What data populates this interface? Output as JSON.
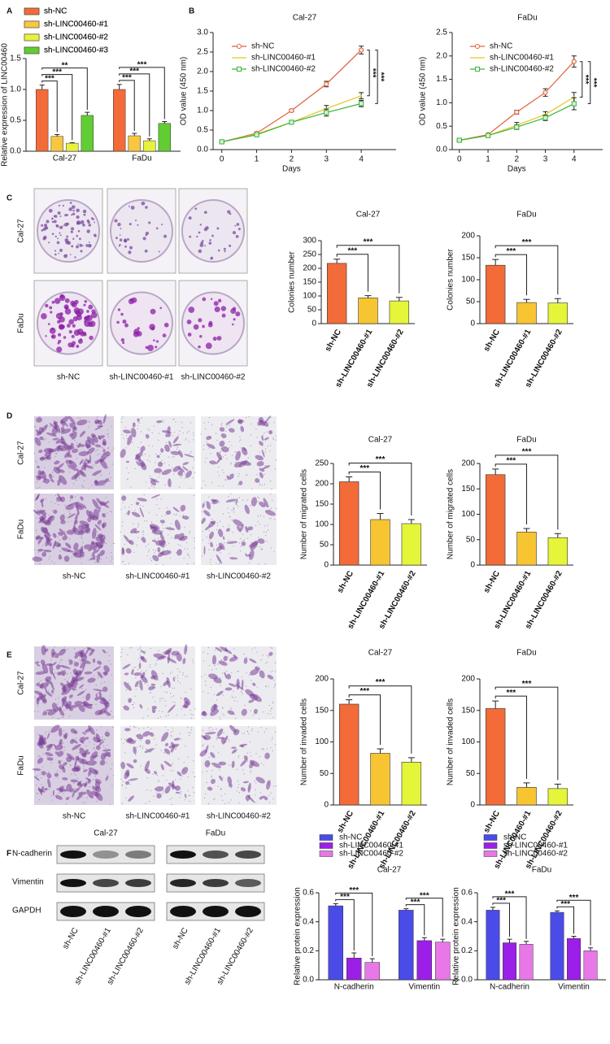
{
  "panel_labels": [
    "A",
    "B",
    "C",
    "D",
    "E",
    "F"
  ],
  "images": {
    "colony": {
      "rows": [
        "Cal-27",
        "FaDu"
      ],
      "columns": [
        "sh-NC",
        "sh-LINC00460-#1",
        "sh-LINC00460-#2"
      ]
    },
    "migration": {
      "rows": [
        "Cal-27",
        "FaDu"
      ],
      "columns": [
        "sh-NC",
        "sh-LINC00460-#1",
        "sh-LINC00460-#2"
      ]
    },
    "invasion": {
      "rows": [
        "Cal-27",
        "FaDu"
      ],
      "columns": [
        "sh-NC",
        "sh-LINC00460-#1",
        "sh-LINC00460-#2"
      ]
    }
  },
  "western_blot": {
    "cell_lines": [
      "Cal-27",
      "FaDu"
    ],
    "proteins": [
      "N-cadherin",
      "Vimentin",
      "GAPDH"
    ],
    "lanes": [
      "sh-NC",
      "sh-LINC00460-#1",
      "sh-LINC00460-#2"
    ]
  },
  "chart_data": [
    {
      "type": "grouped_bar",
      "ylabel": "Relative expression of LINC00460",
      "categories": [
        "Cal-27",
        "FaDu"
      ],
      "series": [
        {
          "name": "sh-NC",
          "color": "#f26b38",
          "values": [
            1.0,
            1.0
          ],
          "errors": [
            0.07,
            0.08
          ]
        },
        {
          "name": "sh-LINC00460-#1",
          "color": "#f8c640",
          "values": [
            0.24,
            0.25
          ],
          "errors": [
            0.03,
            0.04
          ]
        },
        {
          "name": "sh-LINC00460-#2",
          "color": "#e8f23c",
          "values": [
            0.13,
            0.17
          ],
          "errors": [
            0.01,
            0.03
          ]
        },
        {
          "name": "sh-LINC00460-#3",
          "color": "#62cc33",
          "values": [
            0.58,
            0.45
          ],
          "errors": [
            0.05,
            0.03
          ]
        }
      ],
      "ylim": [
        0,
        1.5
      ],
      "yticks": [
        {
          "value": 0,
          "label": "0.0"
        },
        0.5,
        {
          "value": 1,
          "label": "1.0"
        },
        1.5
      ],
      "annotations": [
        [
          "***",
          "***",
          "**"
        ],
        [
          "***",
          "***",
          "***"
        ]
      ]
    },
    {
      "type": "line",
      "title": "Cal-27",
      "xlabel": "Days",
      "ylabel": "OD value (450 nm)",
      "x": [
        0,
        1,
        2,
        3,
        4
      ],
      "series": [
        {
          "name": "sh-NC",
          "color": "#e0603a",
          "marker": "circle",
          "values": [
            0.2,
            0.42,
            1.0,
            1.68,
            2.55
          ],
          "errors": [
            0.02,
            0.03,
            0.03,
            0.07,
            0.1
          ]
        },
        {
          "name": "sh-LINC00460-#1",
          "color": "#e7c51f",
          "marker": "none",
          "values": [
            0.2,
            0.4,
            0.7,
            1.05,
            1.38
          ],
          "errors": [
            0.02,
            0.02,
            0.03,
            0.08,
            0.08
          ]
        },
        {
          "name": "sh-LINC00460-#2",
          "color": "#3cb43c",
          "marker": "square",
          "values": [
            0.2,
            0.38,
            0.7,
            0.95,
            1.18
          ],
          "errors": [
            0.02,
            0.02,
            0.03,
            0.09,
            0.08
          ]
        }
      ],
      "xlim": [
        -0.25,
        5
      ],
      "xticks": [
        0,
        1,
        2,
        3,
        4
      ],
      "ylim": [
        0,
        3
      ],
      "yticks": [
        {
          "value": 0,
          "label": "0.0"
        },
        0.5,
        {
          "value": 1,
          "label": "1.0"
        },
        1.5,
        {
          "value": 2,
          "label": "2.0"
        },
        2.5,
        {
          "value": 3,
          "label": "3.0"
        }
      ],
      "annotations": [
        "***",
        "***"
      ]
    },
    {
      "type": "line",
      "title": "FaDu",
      "xlabel": "Days",
      "ylabel": "OD value (450 nm)",
      "x": [
        0,
        1,
        2,
        3,
        4
      ],
      "series": [
        {
          "name": "sh-NC",
          "color": "#e0603a",
          "marker": "circle",
          "values": [
            0.2,
            0.32,
            0.8,
            1.22,
            1.88
          ],
          "errors": [
            0.02,
            0.02,
            0.04,
            0.08,
            0.12
          ]
        },
        {
          "name": "sh-LINC00460-#1",
          "color": "#e7c51f",
          "marker": "none",
          "values": [
            0.2,
            0.3,
            0.52,
            0.75,
            1.12
          ],
          "errors": [
            0.02,
            0.02,
            0.06,
            0.06,
            0.1
          ]
        },
        {
          "name": "sh-LINC00460-#2",
          "color": "#3cb43c",
          "marker": "square",
          "values": [
            0.2,
            0.3,
            0.48,
            0.68,
            0.98
          ],
          "errors": [
            0.02,
            0.02,
            0.05,
            0.06,
            0.13
          ]
        }
      ],
      "xlim": [
        -0.25,
        5
      ],
      "xticks": [
        0,
        1,
        2,
        3,
        4
      ],
      "ylim": [
        0,
        2.5
      ],
      "yticks": [
        {
          "value": 0,
          "label": "0.0"
        },
        0.5,
        {
          "value": 1,
          "label": "1.0"
        },
        1.5,
        {
          "value": 2,
          "label": "2.0"
        },
        2.5
      ],
      "annotations": [
        "***",
        "***"
      ]
    },
    {
      "type": "bar",
      "title": "Cal-27",
      "ylabel": "Colonies number",
      "categories": [
        "sh-NC",
        "sh-LINC00460-#1",
        "sh-LINC00460-#2"
      ],
      "values": [
        218,
        93,
        82
      ],
      "errors": [
        15,
        8,
        13
      ],
      "colors": [
        "#f26b38",
        "#f7c531",
        "#e4f53a"
      ],
      "ylim": [
        0,
        300
      ],
      "yticks": [
        0,
        50,
        100,
        150,
        200,
        250,
        300
      ],
      "annotations": [
        "***",
        "***"
      ]
    },
    {
      "type": "bar",
      "title": "FaDu",
      "ylabel": "Colonies number",
      "categories": [
        "sh-NC",
        "sh-LINC00460-#1",
        "sh-LINC00460-#2"
      ],
      "values": [
        133,
        48,
        47
      ],
      "errors": [
        13,
        7,
        10
      ],
      "colors": [
        "#f26b38",
        "#f7c531",
        "#e4f53a"
      ],
      "ylim": [
        0,
        200
      ],
      "yticks": [
        0,
        50,
        100,
        150,
        200
      ],
      "annotations": [
        "***",
        "***"
      ]
    },
    {
      "type": "bar",
      "title": "Cal-27",
      "ylabel": "Number of migrated cells",
      "categories": [
        "sh-NC",
        "sh-LINC00460-#1",
        "sh-LINC00460-#2"
      ],
      "values": [
        205,
        112,
        102
      ],
      "errors": [
        12,
        15,
        10
      ],
      "colors": [
        "#f26b38",
        "#f7c531",
        "#e4f53a"
      ],
      "ylim": [
        0,
        250
      ],
      "yticks": [
        0,
        50,
        100,
        150,
        200,
        250
      ],
      "annotations": [
        "***",
        "***"
      ]
    },
    {
      "type": "bar",
      "title": "FaDu",
      "ylabel": "Number of migrated cells",
      "categories": [
        "sh-NC",
        "sh-LINC00460-#1",
        "sh-LINC00460-#2"
      ],
      "values": [
        178,
        65,
        54
      ],
      "errors": [
        11,
        7,
        8
      ],
      "colors": [
        "#f26b38",
        "#f7c531",
        "#e4f53a"
      ],
      "ylim": [
        0,
        200
      ],
      "yticks": [
        0,
        50,
        100,
        150,
        200
      ],
      "annotations": [
        "***",
        "***"
      ]
    },
    {
      "type": "bar",
      "title": "Cal-27",
      "ylabel": "Number of invaded cells",
      "categories": [
        "sh-NC",
        "sh-LINC00460-#1",
        "sh-LINC00460-#2"
      ],
      "values": [
        160,
        82,
        68
      ],
      "errors": [
        7,
        7,
        7
      ],
      "colors": [
        "#f26b38",
        "#f7c531",
        "#e4f53a"
      ],
      "ylim": [
        0,
        200
      ],
      "yticks": [
        0,
        50,
        100,
        150,
        200
      ],
      "annotations": [
        "***",
        "***"
      ]
    },
    {
      "type": "bar",
      "title": "FaDu",
      "ylabel": "Number of invaded cells",
      "categories": [
        "sh-NC",
        "sh-LINC00460-#1",
        "sh-LINC00460-#2"
      ],
      "values": [
        153,
        28,
        26
      ],
      "errors": [
        12,
        7,
        7
      ],
      "colors": [
        "#f26b38",
        "#f7c531",
        "#e4f53a"
      ],
      "ylim": [
        0,
        200
      ],
      "yticks": [
        0,
        50,
        100,
        150,
        200
      ],
      "annotations": [
        "***",
        "***"
      ]
    },
    {
      "type": "grouped_bar",
      "title": "Cal-27",
      "ylabel": "Relative protein expression",
      "categories": [
        "N-cadherin",
        "Vimentin"
      ],
      "series": [
        {
          "name": "sh-NC",
          "color": "#4b4be8",
          "values": [
            0.51,
            0.48
          ],
          "errors": [
            0.015,
            0.01
          ]
        },
        {
          "name": "sh-LINC00460-#1",
          "color": "#9b1fe8",
          "values": [
            0.15,
            0.27
          ],
          "errors": [
            0.035,
            0.02
          ]
        },
        {
          "name": "sh-LINC00460-#2",
          "color": "#e877e8",
          "values": [
            0.12,
            0.26
          ],
          "errors": [
            0.025,
            0.02
          ]
        }
      ],
      "ylim": [
        0,
        0.6
      ],
      "yticks": [
        {
          "value": 0,
          "label": "0.0"
        },
        0.2,
        0.4,
        0.6
      ],
      "annotations": [
        [
          "***",
          "***"
        ],
        [
          "***",
          "***"
        ]
      ]
    },
    {
      "type": "grouped_bar",
      "title": "FaDu",
      "ylabel": "Relative protein expression",
      "categories": [
        "N-cadherin",
        "Vimentin"
      ],
      "series": [
        {
          "name": "sh-NC",
          "color": "#4b4be8",
          "values": [
            0.48,
            0.465
          ],
          "errors": [
            0.02,
            0.01
          ]
        },
        {
          "name": "sh-LINC00460-#1",
          "color": "#9b1fe8",
          "values": [
            0.255,
            0.285
          ],
          "errors": [
            0.025,
            0.015
          ]
        },
        {
          "name": "sh-LINC00460-#2",
          "color": "#e877e8",
          "values": [
            0.245,
            0.2
          ],
          "errors": [
            0.02,
            0.02
          ]
        }
      ],
      "ylim": [
        0,
        0.6
      ],
      "yticks": [
        {
          "value": 0,
          "label": "0.0"
        },
        0.2,
        0.4,
        0.6
      ],
      "annotations": [
        [
          "***",
          "***"
        ],
        [
          "***",
          "***"
        ]
      ]
    }
  ]
}
